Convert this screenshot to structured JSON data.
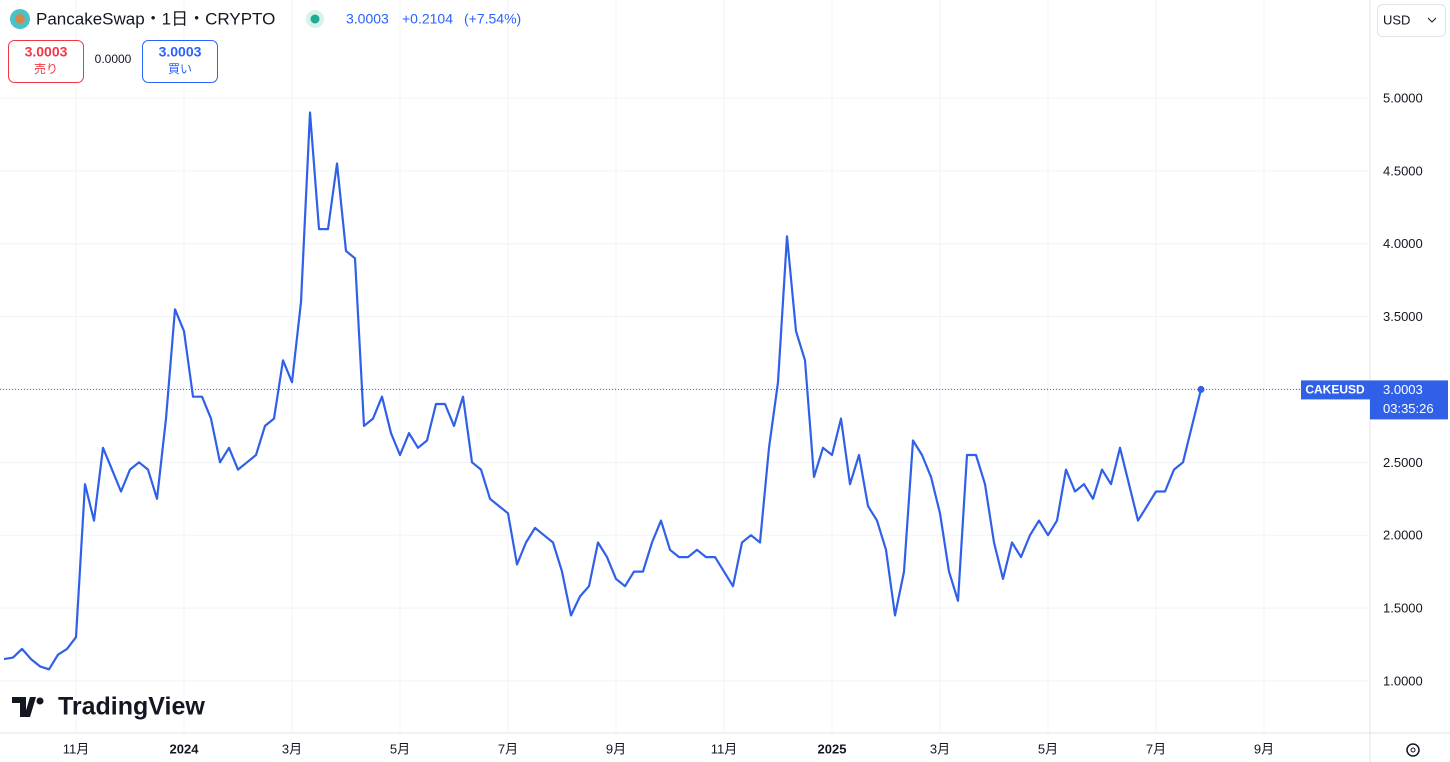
{
  "header": {
    "symbol_title": "PancakeSwap・1日・CRYPTO",
    "last": "3.0003",
    "change": "+0.2104",
    "change_percent": "(+7.54%)",
    "sell_price": "3.0003",
    "sell_label": "売り",
    "spread": "0.0000",
    "buy_price": "3.0003",
    "buy_label": "買い",
    "currency": "USD",
    "symbol": "CAKEUSD",
    "countdown": "03:35:26",
    "logo": "TradingView"
  },
  "chart_data": {
    "type": "line",
    "categories": [
      null,
      null,
      null,
      null,
      null,
      null,
      null,
      null,
      "11月",
      null,
      null,
      null,
      null,
      null,
      null,
      null,
      null,
      null,
      null,
      null,
      "2024",
      null,
      null,
      null,
      null,
      null,
      null,
      null,
      null,
      null,
      null,
      null,
      "3月",
      null,
      null,
      null,
      null,
      null,
      null,
      null,
      null,
      null,
      null,
      null,
      "5月",
      null,
      null,
      null,
      null,
      null,
      null,
      null,
      null,
      null,
      null,
      null,
      "7月",
      null,
      null,
      null,
      null,
      null,
      null,
      null,
      null,
      null,
      null,
      null,
      "9月",
      null,
      null,
      null,
      null,
      null,
      null,
      null,
      null,
      null,
      null,
      null,
      "11月",
      null,
      null,
      null,
      null,
      null,
      null,
      null,
      null,
      null,
      null,
      null,
      "2025",
      null,
      null,
      null,
      null,
      null,
      null,
      null,
      null,
      null,
      null,
      null,
      "3月",
      null,
      null,
      null,
      null,
      null,
      null,
      null,
      null,
      null,
      null,
      null,
      "5月",
      null,
      null,
      null,
      null,
      null,
      null,
      null,
      null,
      null,
      null,
      null,
      "7月",
      null,
      null,
      null,
      null,
      null,
      null,
      null,
      null,
      null,
      null,
      null,
      "9月"
    ],
    "series": [
      {
        "name": "CAKEUSD",
        "color": "#3060e8",
        "values": [
          1.15,
          1.16,
          1.22,
          1.15,
          1.1,
          1.08,
          1.18,
          1.22,
          1.3,
          2.35,
          2.1,
          2.6,
          2.45,
          2.3,
          2.45,
          2.5,
          2.45,
          2.25,
          2.8,
          3.55,
          3.4,
          2.95,
          2.95,
          2.8,
          2.5,
          2.6,
          2.45,
          2.5,
          2.55,
          2.75,
          2.8,
          3.2,
          3.05,
          3.6,
          4.9,
          4.1,
          4.1,
          4.55,
          3.95,
          3.9,
          2.75,
          2.8,
          2.95,
          2.7,
          2.55,
          2.7,
          2.6,
          2.65,
          2.9,
          2.9,
          2.75,
          2.95,
          2.5,
          2.45,
          2.25,
          2.2,
          2.15,
          1.8,
          1.95,
          2.05,
          2.0,
          1.95,
          1.75,
          1.45,
          1.58,
          1.65,
          1.95,
          1.85,
          1.7,
          1.65,
          1.75,
          1.75,
          1.95,
          2.1,
          1.9,
          1.85,
          1.85,
          1.9,
          1.85,
          1.85,
          1.75,
          1.65,
          1.95,
          2.0,
          1.95,
          2.6,
          3.05,
          4.05,
          3.4,
          3.2,
          2.4,
          2.6,
          2.55,
          2.8,
          2.35,
          2.55,
          2.2,
          2.1,
          1.9,
          1.45,
          1.75,
          2.65,
          2.55,
          2.4,
          2.15,
          1.75,
          1.55,
          2.55,
          2.55,
          2.35,
          1.95,
          1.7,
          1.95,
          1.85,
          2.0,
          2.1,
          2.0,
          2.1,
          2.45,
          2.3,
          2.35,
          2.25,
          2.45,
          2.35,
          2.6,
          2.35,
          2.1,
          2.2,
          2.3,
          2.3,
          2.45,
          2.5,
          2.75,
          3.0003,
          null,
          null,
          null,
          null,
          null,
          null,
          null
        ]
      }
    ],
    "ylim": [
      0.643,
      5.672
    ],
    "yticks": [
      {
        "value": 1,
        "label": "1.0000"
      },
      {
        "value": 1.5,
        "label": "1.5000"
      },
      {
        "value": 2,
        "label": "2.0000"
      },
      {
        "value": 2.5,
        "label": "2.5000"
      },
      {
        "value": 3,
        "label": "3.0000"
      },
      {
        "value": 3.5,
        "label": "3.5000"
      },
      {
        "value": 4,
        "label": "4.0000"
      },
      {
        "value": 4.5,
        "label": "4.5000"
      },
      {
        "value": 5,
        "label": "5.0000"
      }
    ],
    "grid": true
  }
}
